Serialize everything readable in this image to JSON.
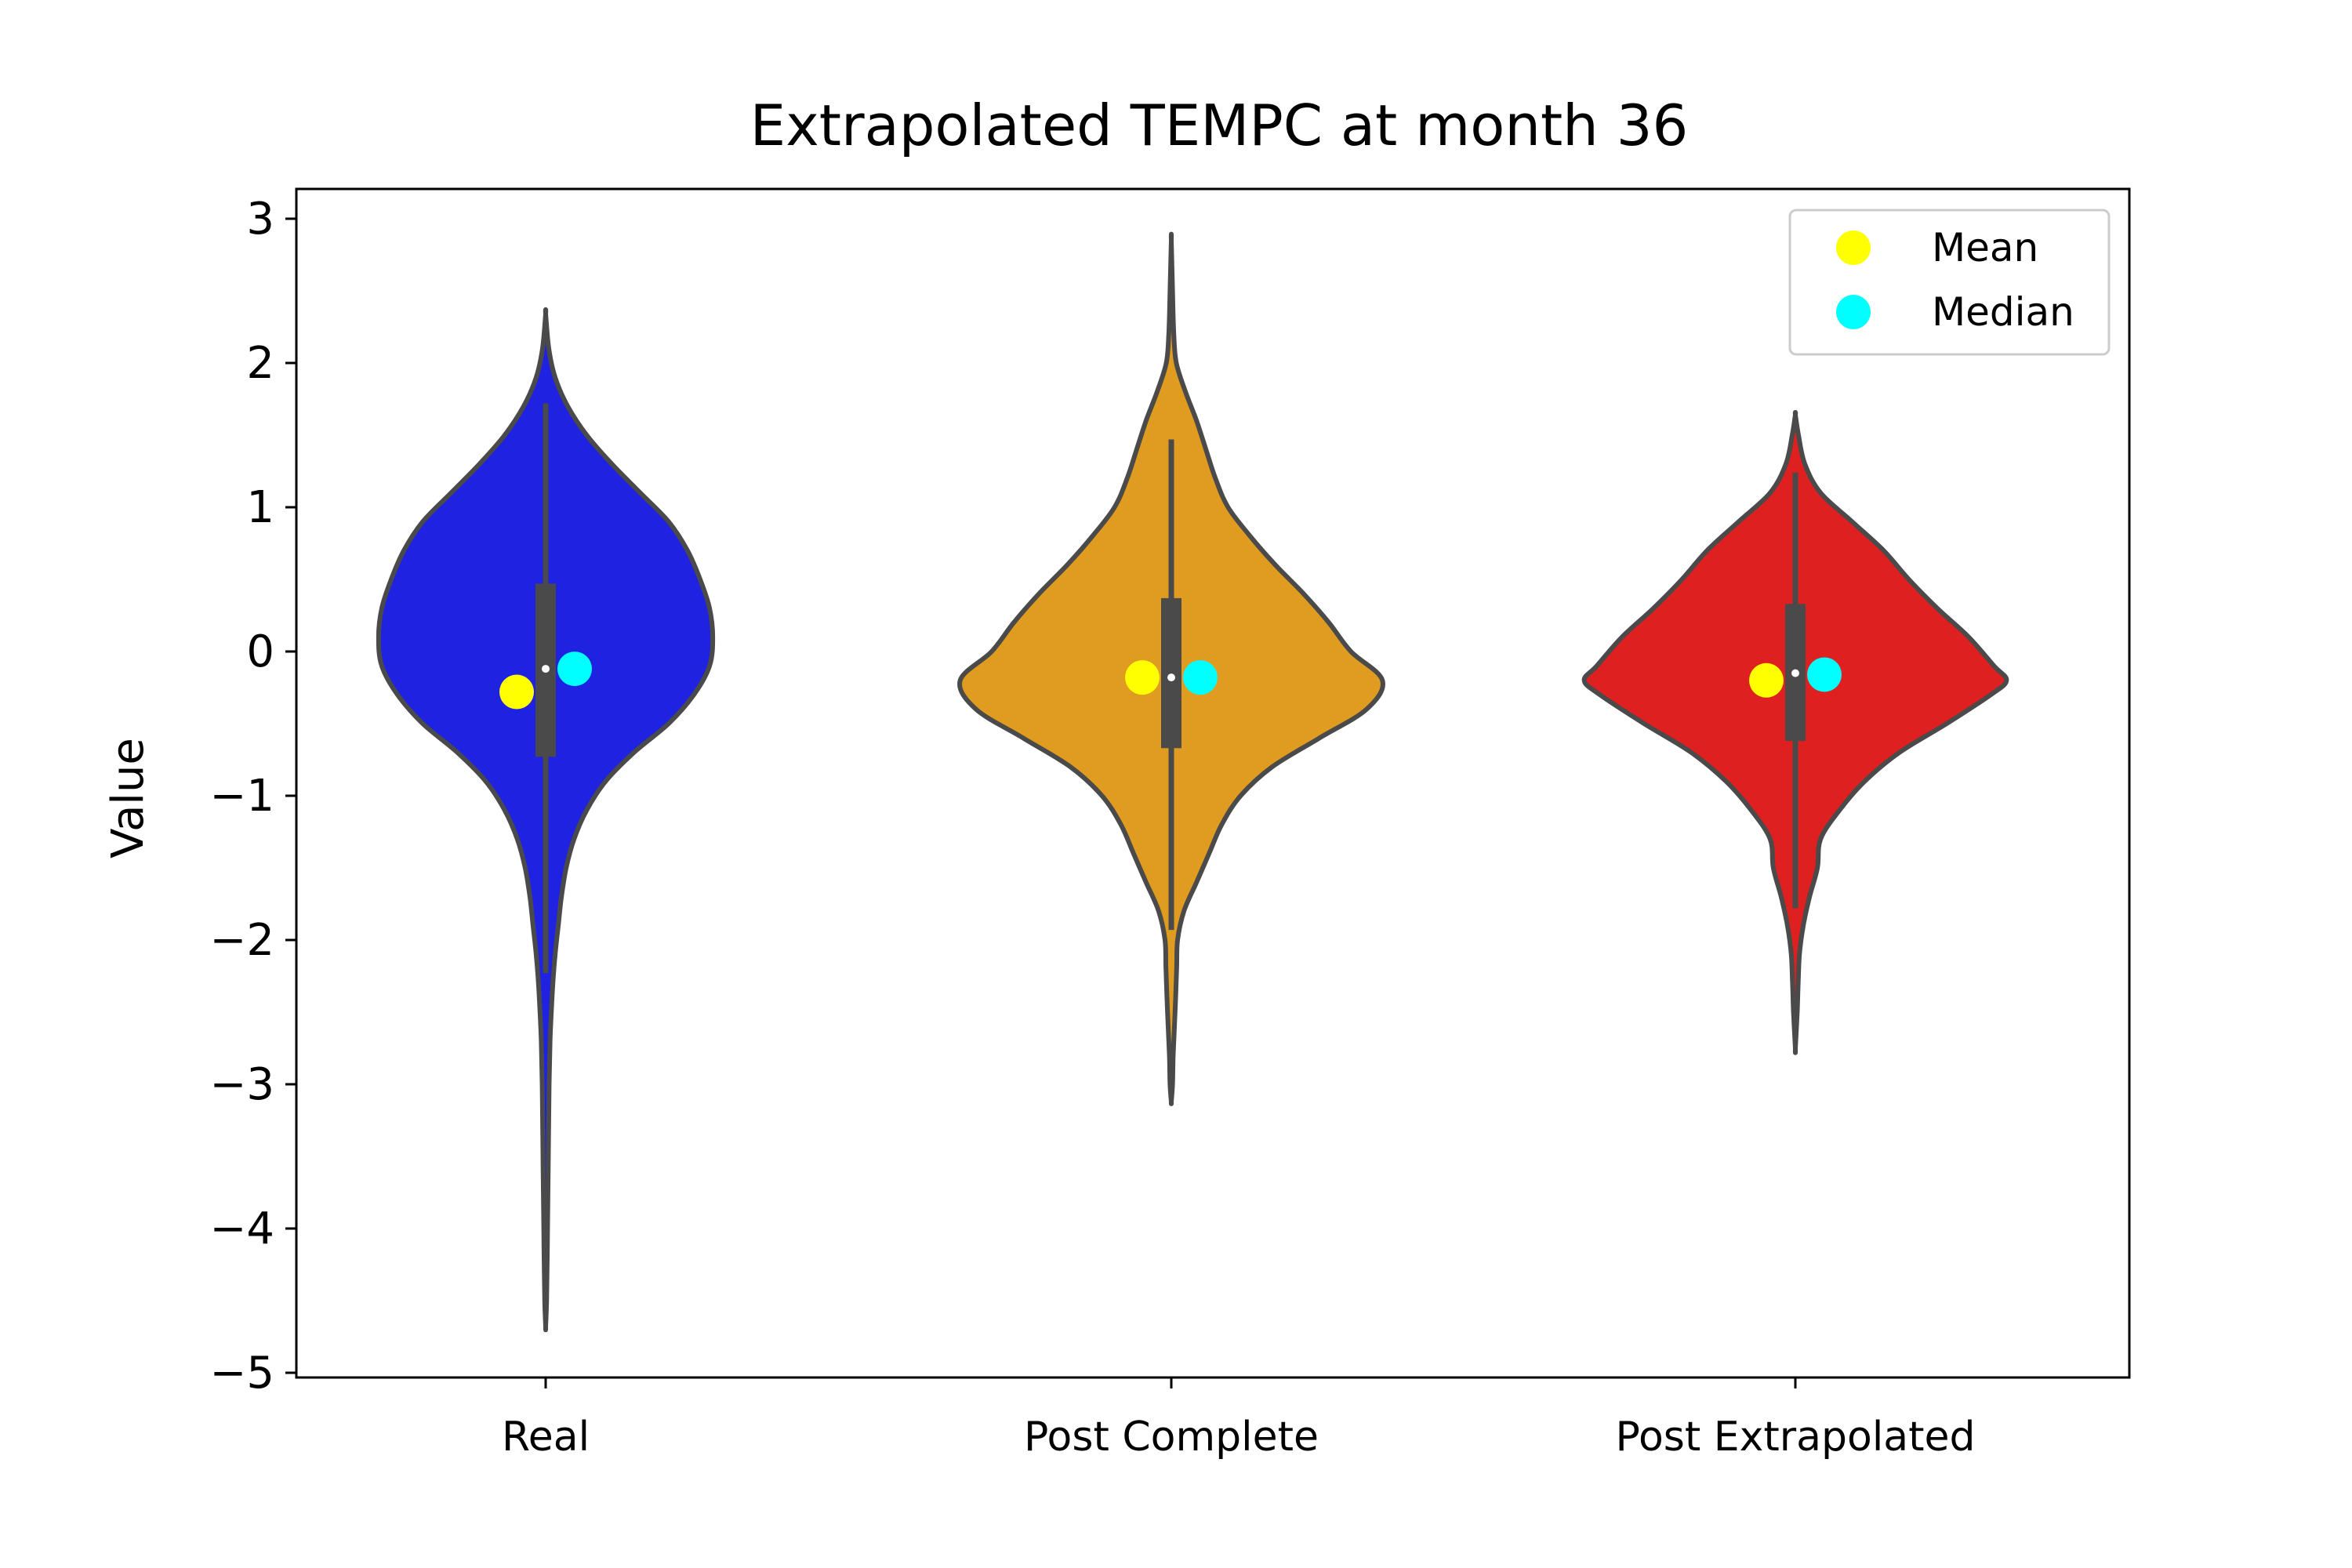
{
  "chart_data": {
    "type": "violin",
    "title": "Extrapolated TEMPC at month 36",
    "xlabel": "",
    "ylabel": "Value",
    "ylim": [
      -5.05,
      3.2
    ],
    "yticks": [
      3,
      2,
      1,
      0,
      -1,
      -2,
      -3,
      -4,
      -5
    ],
    "ytick_labels": [
      "3",
      "2",
      "1",
      "0",
      "−1",
      "−2",
      "−3",
      "−4",
      "−5"
    ],
    "categories": [
      "Real",
      "Post Complete",
      "Post Extrapolated"
    ],
    "legend": {
      "position": "top-right",
      "entries": [
        {
          "label": "Mean",
          "color": "#ffff00"
        },
        {
          "label": "Median",
          "color": "#00ffff"
        }
      ]
    },
    "violins": [
      {
        "category": "Real",
        "color": "#1f22e0",
        "y_min": -4.68,
        "y_max": 2.34,
        "profile": [
          [
            2.34,
            0.0
          ],
          [
            2.1,
            0.01
          ],
          [
            1.9,
            0.03
          ],
          [
            1.7,
            0.07
          ],
          [
            1.5,
            0.13
          ],
          [
            1.3,
            0.21
          ],
          [
            1.1,
            0.3
          ],
          [
            0.9,
            0.39
          ],
          [
            0.7,
            0.45
          ],
          [
            0.5,
            0.49
          ],
          [
            0.3,
            0.52
          ],
          [
            0.1,
            0.53
          ],
          [
            -0.1,
            0.52
          ],
          [
            -0.3,
            0.47
          ],
          [
            -0.5,
            0.39
          ],
          [
            -0.7,
            0.28
          ],
          [
            -0.9,
            0.19
          ],
          [
            -1.1,
            0.13
          ],
          [
            -1.3,
            0.09
          ],
          [
            -1.5,
            0.065
          ],
          [
            -1.7,
            0.05
          ],
          [
            -1.9,
            0.04
          ],
          [
            -2.1,
            0.03
          ],
          [
            -2.3,
            0.023
          ],
          [
            -2.5,
            0.018
          ],
          [
            -2.7,
            0.014
          ],
          [
            -3.0,
            0.011
          ],
          [
            -3.4,
            0.009
          ],
          [
            -3.8,
            0.007
          ],
          [
            -4.2,
            0.005
          ],
          [
            -4.5,
            0.003
          ],
          [
            -4.68,
            0.0
          ]
        ],
        "q1": -0.73,
        "median_box": -0.12,
        "q3": 0.47,
        "whisker_low": -2.23,
        "whisker_high": 1.72,
        "mean": -0.28,
        "median": -0.12
      },
      {
        "category": "Post Complete",
        "color": "#e09c20",
        "y_min": -3.12,
        "y_max": 2.85,
        "profile": [
          [
            2.85,
            0.0
          ],
          [
            2.5,
            0.004
          ],
          [
            2.2,
            0.008
          ],
          [
            2.0,
            0.016
          ],
          [
            1.8,
            0.045
          ],
          [
            1.6,
            0.08
          ],
          [
            1.4,
            0.11
          ],
          [
            1.2,
            0.14
          ],
          [
            1.0,
            0.18
          ],
          [
            0.8,
            0.25
          ],
          [
            0.6,
            0.33
          ],
          [
            0.4,
            0.42
          ],
          [
            0.2,
            0.5
          ],
          [
            0.0,
            0.57
          ],
          [
            -0.2,
            0.67
          ],
          [
            -0.4,
            0.62
          ],
          [
            -0.6,
            0.47
          ],
          [
            -0.8,
            0.32
          ],
          [
            -1.0,
            0.22
          ],
          [
            -1.2,
            0.16
          ],
          [
            -1.4,
            0.12
          ],
          [
            -1.6,
            0.08
          ],
          [
            -1.8,
            0.04
          ],
          [
            -2.0,
            0.02
          ],
          [
            -2.2,
            0.017
          ],
          [
            -2.5,
            0.012
          ],
          [
            -2.8,
            0.006
          ],
          [
            -3.0,
            0.004
          ],
          [
            -3.12,
            0.0
          ]
        ],
        "q1": -0.67,
        "median_box": -0.18,
        "q3": 0.37,
        "whisker_low": -1.93,
        "whisker_high": 1.47,
        "mean": -0.18,
        "median": -0.18
      },
      {
        "category": "Post Extrapolated",
        "color": "#de2020",
        "y_min": -2.75,
        "y_max": 1.64,
        "profile": [
          [
            1.64,
            0.0
          ],
          [
            1.5,
            0.01
          ],
          [
            1.3,
            0.03
          ],
          [
            1.1,
            0.08
          ],
          [
            0.9,
            0.18
          ],
          [
            0.7,
            0.28
          ],
          [
            0.5,
            0.36
          ],
          [
            0.3,
            0.45
          ],
          [
            0.1,
            0.55
          ],
          [
            -0.1,
            0.63
          ],
          [
            -0.2,
            0.67
          ],
          [
            -0.3,
            0.62
          ],
          [
            -0.5,
            0.48
          ],
          [
            -0.7,
            0.33
          ],
          [
            -0.9,
            0.22
          ],
          [
            -1.1,
            0.14
          ],
          [
            -1.3,
            0.08
          ],
          [
            -1.5,
            0.07
          ],
          [
            -1.7,
            0.045
          ],
          [
            -1.9,
            0.025
          ],
          [
            -2.1,
            0.013
          ],
          [
            -2.3,
            0.009
          ],
          [
            -2.5,
            0.006
          ],
          [
            -2.75,
            0.0
          ]
        ],
        "q1": -0.62,
        "median_box": -0.15,
        "q3": 0.33,
        "whisker_low": -1.78,
        "whisker_high": 1.24,
        "mean": -0.2,
        "median": -0.16
      }
    ]
  }
}
